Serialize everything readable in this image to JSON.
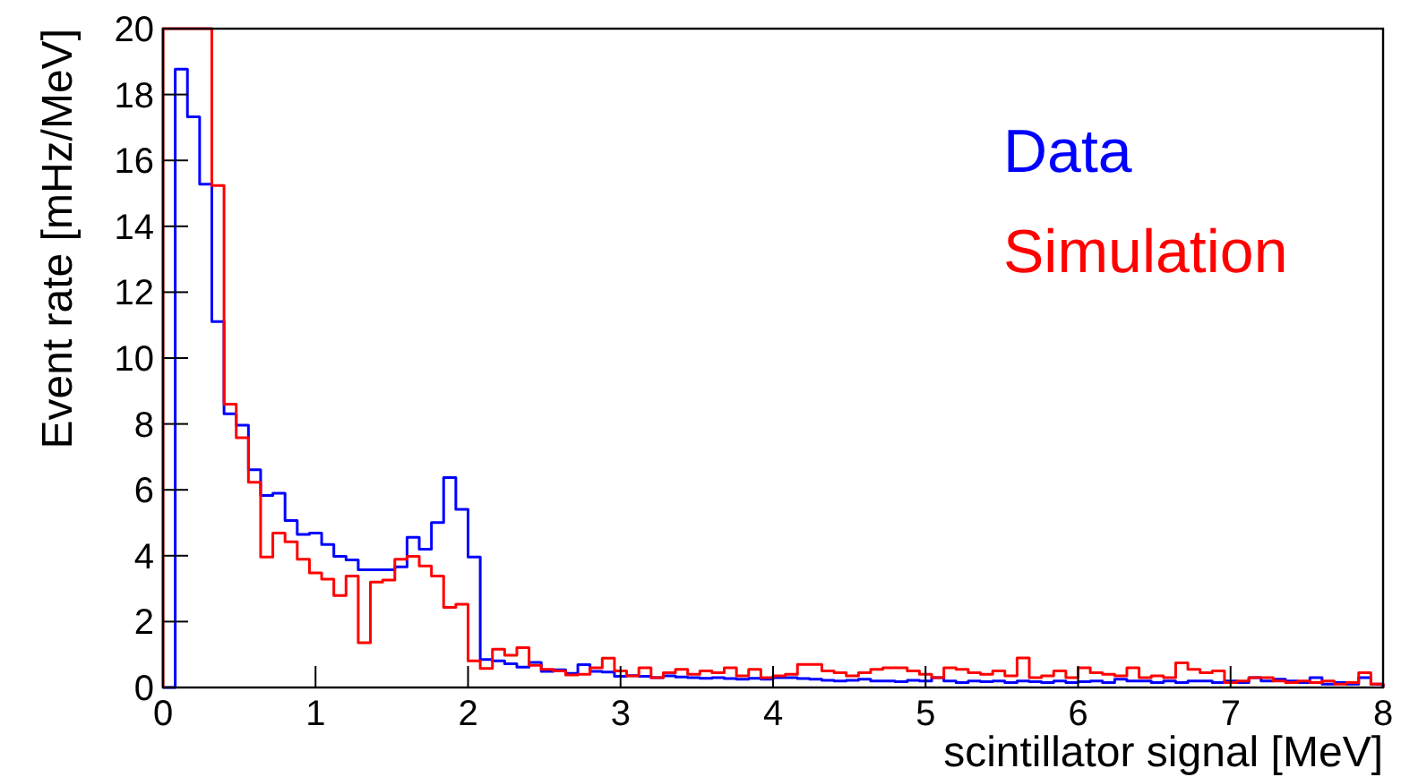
{
  "chart_data": {
    "type": "histogram",
    "xlabel": "scintillator signal [MeV]",
    "ylabel": "Event rate [mHz/MeV]",
    "bins": [
      0,
      0.08,
      0.16,
      0.24,
      0.32,
      0.4,
      0.48,
      0.56,
      0.64,
      0.72,
      0.8,
      0.88,
      0.96,
      1.04,
      1.12,
      1.2,
      1.28,
      1.36,
      1.44,
      1.52,
      1.6,
      1.68,
      1.76,
      1.84,
      1.92,
      2,
      2.08,
      2.16,
      2.24,
      2.32,
      2.4,
      2.48,
      2.56,
      2.64,
      2.72,
      2.8,
      2.88,
      2.96,
      3.04,
      3.12,
      3.2,
      3.28,
      3.36,
      3.44,
      3.52,
      3.6,
      3.68,
      3.76,
      3.84,
      3.92,
      4,
      4.08,
      4.16,
      4.24,
      4.32,
      4.4,
      4.48,
      4.56,
      4.64,
      4.72,
      4.8,
      4.88,
      4.96,
      5.04,
      5.12,
      5.2,
      5.28,
      5.36,
      5.44,
      5.52,
      5.6,
      5.68,
      5.76,
      5.84,
      5.92,
      6,
      6.08,
      6.16,
      6.24,
      6.32,
      6.4,
      6.48,
      6.56,
      6.64,
      6.72,
      6.8,
      6.88,
      6.96,
      7.04,
      7.12,
      7.2,
      7.28,
      7.36,
      7.44,
      7.52,
      7.6,
      7.68,
      7.76,
      7.84,
      7.92,
      8
    ],
    "series": [
      {
        "name": "Data",
        "color": "#0000ff",
        "values": [
          0,
          18.77,
          17.32,
          15.28,
          11.11,
          8.31,
          7.96,
          6.61,
          5.83,
          5.9,
          5.07,
          4.65,
          4.69,
          4.34,
          3.98,
          3.87,
          3.57,
          3.57,
          3.57,
          3.66,
          4.56,
          4.2,
          5.01,
          6.37,
          5.41,
          3.96,
          0.85,
          0.81,
          0.72,
          0.62,
          0.76,
          0.49,
          0.54,
          0.43,
          0.69,
          0.49,
          0.47,
          0.34,
          0.36,
          0.34,
          0.3,
          0.35,
          0.32,
          0.3,
          0.28,
          0.3,
          0.27,
          0.25,
          0.28,
          0.25,
          0.3,
          0.3,
          0.27,
          0.25,
          0.22,
          0.2,
          0.22,
          0.25,
          0.2,
          0.2,
          0.18,
          0.22,
          0.2,
          0.3,
          0.2,
          0.15,
          0.2,
          0.18,
          0.2,
          0.15,
          0.2,
          0.18,
          0.15,
          0.2,
          0.15,
          0.18,
          0.2,
          0.15,
          0.25,
          0.2,
          0.2,
          0.15,
          0.2,
          0.15,
          0.2,
          0.2,
          0.15,
          0.2,
          0.15,
          0.3,
          0.2,
          0.25,
          0.2,
          0.15,
          0.3,
          0.1,
          0.15,
          0.1,
          0.3,
          0.1
        ]
      },
      {
        "name": "Simulation",
        "color": "#ff0000",
        "values": [
          20,
          20,
          20,
          20,
          15.24,
          8.6,
          7.58,
          6.23,
          3.96,
          4.69,
          4.42,
          3.89,
          3.48,
          3.29,
          2.79,
          3.38,
          1.36,
          3.2,
          3.26,
          3.89,
          3.98,
          3.69,
          3.38,
          2.43,
          2.53,
          0.81,
          0.58,
          1.16,
          0.98,
          1.21,
          0.67,
          0.55,
          0.5,
          0.38,
          0.4,
          0.6,
          0.89,
          0.5,
          0.35,
          0.6,
          0.3,
          0.45,
          0.55,
          0.4,
          0.5,
          0.45,
          0.6,
          0.35,
          0.55,
          0.3,
          0.35,
          0.4,
          0.7,
          0.7,
          0.5,
          0.45,
          0.35,
          0.45,
          0.55,
          0.6,
          0.6,
          0.5,
          0.4,
          0.3,
          0.6,
          0.55,
          0.45,
          0.4,
          0.5,
          0.35,
          0.9,
          0.3,
          0.35,
          0.5,
          0.3,
          0.6,
          0.45,
          0.4,
          0.35,
          0.6,
          0.3,
          0.35,
          0.3,
          0.75,
          0.55,
          0.45,
          0.5,
          0.15,
          0.2,
          0.3,
          0.3,
          0.2,
          0.15,
          0.2,
          0.15,
          0.2,
          0.1,
          0.15,
          0.45,
          0.1
        ]
      }
    ],
    "xlim": [
      0,
      8
    ],
    "xticks": [
      0,
      1,
      2,
      3,
      4,
      5,
      6,
      7,
      8
    ],
    "ylim": [
      0,
      20
    ],
    "yticks": [
      0,
      2,
      4,
      6,
      8,
      10,
      12,
      14,
      16,
      18,
      20
    ],
    "grid": false,
    "legend": "top right"
  }
}
